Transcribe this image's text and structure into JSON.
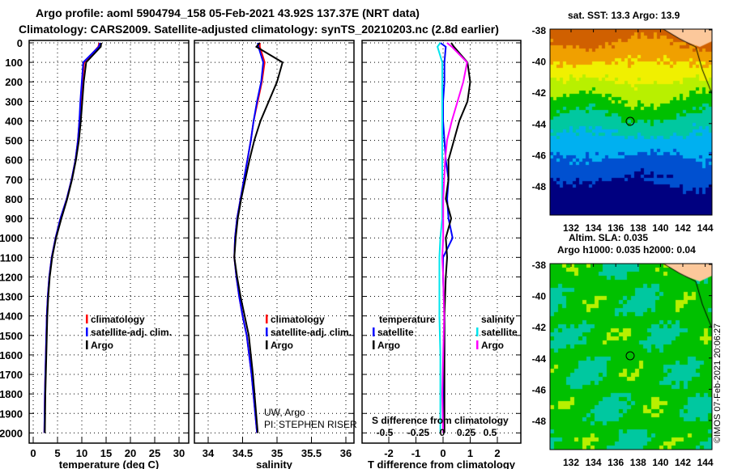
{
  "title_line1": "Argo profile: aoml 5904794_158 05-Feb-2021 43.92S 137.37E (NRT data)",
  "title_line2": "Climatology: CARS2009. Satellite-adjusted climatology: synTS_20210203.nc (2.8d earlier)",
  "credit": "UW, Argo",
  "pi": "PI: STEPHEN RISER",
  "footer": "©IMOS 07-Feb-2021 20:06:27",
  "colors": {
    "climatology": "#ff0000",
    "satellite": "#0000ff",
    "argo": "#000000",
    "sal_satellite": "#00e5ee",
    "sal_argo": "#ff00ff"
  },
  "chart_data": [
    {
      "type": "line",
      "xlabel": "temperature (deg C)",
      "ylabel": "",
      "xlim": [
        -1,
        32
      ],
      "ylim": [
        2050,
        0
      ],
      "xticks": [
        "0",
        "5",
        "10",
        "15",
        "20",
        "25",
        "30"
      ],
      "yticks": [
        "0",
        "100",
        "200",
        "300",
        "400",
        "500",
        "600",
        "700",
        "800",
        "900",
        "1000",
        "1100",
        "1200",
        "1300",
        "1400",
        "1500",
        "1600",
        "1700",
        "1800",
        "1900",
        "2000"
      ],
      "legend": [
        "climatology",
        "satellite-adj. clim.",
        "Argo"
      ],
      "depth": [
        0,
        20,
        100,
        200,
        300,
        400,
        500,
        600,
        700,
        800,
        900,
        1000,
        1100,
        1200,
        1300,
        1400,
        1500,
        1600,
        1800,
        2000
      ],
      "series": [
        {
          "name": "climatology",
          "values": [
            13.6,
            13.4,
            10.5,
            10.1,
            9.8,
            9.5,
            9.2,
            8.7,
            7.9,
            6.9,
            5.6,
            4.6,
            3.8,
            3.3,
            3.0,
            2.8,
            2.7,
            2.6,
            2.4,
            2.3
          ]
        },
        {
          "name": "satellite-adj. clim.",
          "values": [
            13.8,
            13.5,
            10.3,
            10.0,
            9.7,
            9.5,
            9.2,
            8.7,
            7.9,
            6.9,
            5.6,
            4.6,
            3.8,
            3.3,
            3.0,
            2.8,
            2.7,
            2.6,
            2.4,
            2.3
          ]
        },
        {
          "name": "Argo",
          "values": [
            14.0,
            13.9,
            10.9,
            10.4,
            10.1,
            9.8,
            9.4,
            8.8,
            8.0,
            7.0,
            5.8,
            4.7,
            3.9,
            3.4,
            3.1,
            2.9,
            2.8,
            2.7,
            2.5,
            2.4
          ]
        }
      ]
    },
    {
      "type": "line",
      "xlabel": "salinity",
      "xlim": [
        33.8,
        36.1
      ],
      "ylim": [
        2050,
        0
      ],
      "xticks": [
        "34",
        "34.5",
        "35",
        "35.5",
        "36"
      ],
      "legend": [
        "climatology",
        "satellite-adj. clim.",
        "Argo"
      ],
      "depth": [
        0,
        20,
        100,
        200,
        300,
        400,
        500,
        600,
        700,
        800,
        900,
        1000,
        1100,
        1200,
        1300,
        1400,
        1500,
        1700,
        2000
      ],
      "series": [
        {
          "name": "climatology",
          "values": [
            34.75,
            34.75,
            34.82,
            34.78,
            34.72,
            34.66,
            34.62,
            34.57,
            34.52,
            34.47,
            34.42,
            34.39,
            34.38,
            34.41,
            34.45,
            34.5,
            34.56,
            34.63,
            34.71
          ]
        },
        {
          "name": "satellite-adj. clim.",
          "values": [
            34.72,
            34.73,
            34.8,
            34.77,
            34.71,
            34.66,
            34.62,
            34.57,
            34.52,
            34.47,
            34.42,
            34.39,
            34.38,
            34.41,
            34.45,
            34.5,
            34.56,
            34.63,
            34.71
          ]
        },
        {
          "name": "Argo",
          "values": [
            34.75,
            34.7,
            35.08,
            35.0,
            34.88,
            34.76,
            34.67,
            34.6,
            34.54,
            34.48,
            34.43,
            34.4,
            34.38,
            34.42,
            34.47,
            34.53,
            34.59,
            34.65,
            34.72
          ]
        }
      ]
    },
    {
      "type": "line",
      "xlabel": "T difference from climatology",
      "x2label": "S difference from climatology",
      "xlim": [
        -3,
        3
      ],
      "ylim": [
        2050,
        0
      ],
      "xticks": [
        "-2",
        "-1",
        "0",
        "1",
        "2"
      ],
      "x2ticks": [
        "-0.5",
        "-0.25",
        "0",
        "0.25",
        "0.5"
      ],
      "legend_titles": [
        "temperature",
        "salinity"
      ],
      "legend": [
        "satellite",
        "Argo",
        "satellite",
        "Argo"
      ],
      "depth": [
        0,
        20,
        100,
        200,
        300,
        400,
        500,
        600,
        700,
        800,
        900,
        1000,
        1100,
        1200,
        1400,
        1600,
        1800,
        2000
      ],
      "series": [
        {
          "name": "T satellite",
          "values": [
            -0.1,
            0.1,
            0.05,
            0.05,
            0.0,
            0.0,
            0.05,
            0.1,
            0.2,
            0.15,
            0.2,
            0.35,
            0.0,
            0.0,
            0.05,
            0.05,
            0.0,
            0.05
          ]
        },
        {
          "name": "T Argo",
          "values": [
            0.3,
            0.4,
            0.9,
            1.0,
            0.9,
            0.6,
            0.4,
            0.2,
            0.2,
            0.1,
            0.3,
            0.1,
            0.15,
            0.1,
            0.05,
            0.05,
            0.05,
            0.05
          ]
        },
        {
          "name": "S satellite",
          "values": [
            -0.02,
            -0.05,
            0.0,
            0.0,
            0.0,
            0.0,
            0.0,
            0.0,
            0.0,
            0.0,
            0.0,
            -0.02,
            -0.03,
            -0.03,
            -0.03,
            -0.02,
            -0.02,
            -0.02
          ]
        },
        {
          "name": "S Argo",
          "values": [
            0.05,
            0.1,
            0.26,
            0.22,
            0.16,
            0.1,
            0.05,
            0.03,
            0.02,
            0.01,
            0.01,
            0.01,
            0.0,
            0.01,
            0.02,
            0.01,
            0.0,
            0.01
          ]
        }
      ]
    },
    {
      "type": "heatmap",
      "title": "sat. SST: 13.3 Argo: 13.9",
      "lon_ticks": [
        "132",
        "134",
        "136",
        "138",
        "140",
        "142",
        "144"
      ],
      "lat_ticks": [
        "-38",
        "-40",
        "-42",
        "-44",
        "-46",
        "-48"
      ],
      "argo_position": [
        137.37,
        -43.92
      ]
    },
    {
      "type": "heatmap",
      "title1": "Altim. SLA: 0.035",
      "title2": "Argo h1000: 0.035 h2000: 0.04",
      "lon_ticks": [
        "132",
        "134",
        "136",
        "138",
        "140",
        "142",
        "144"
      ],
      "lat_ticks": [
        "-38",
        "-40",
        "-42",
        "-44",
        "-46",
        "-48"
      ],
      "argo_position": [
        137.37,
        -43.92
      ]
    }
  ]
}
